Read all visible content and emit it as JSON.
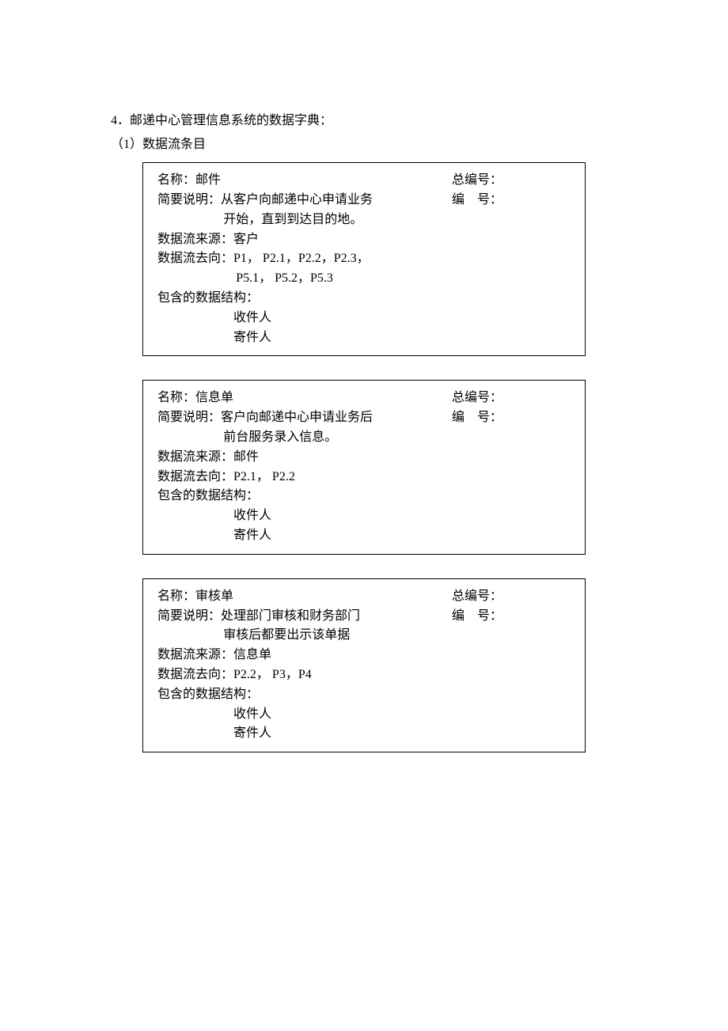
{
  "heading1": "4．邮递中心管理信息系统的数据字典：",
  "heading2": "（1）数据流条目",
  "labels": {
    "name": "名称：",
    "desc": "简要说明：",
    "source": "数据流来源：",
    "dest": "数据流去向：",
    "struct": "包含的数据结构：",
    "totalNo": "总编号：",
    "no": "编　号："
  },
  "entries": [
    {
      "name": "邮件",
      "desc_line1": "从客户向邮递中心申请业务",
      "desc_line2": "开始，直到到达目的地。",
      "source": "客户",
      "dest_line1": "P1， P2.1，P2.2，P2.3，",
      "dest_line2": "P5.1， P5.2，P5.3",
      "struct1": "收件人",
      "struct2": "寄件人"
    },
    {
      "name": "信息单",
      "desc_line1": "客户向邮递中心申请业务后",
      "desc_line2": "前台服务录入信息。",
      "source": "邮件",
      "dest_line1": "P2.1， P2.2",
      "dest_line2": "",
      "struct1": "收件人",
      "struct2": "寄件人"
    },
    {
      "name": "审核单",
      "desc_line1": "处理部门审核和财务部门",
      "desc_line2": "审核后都要出示该单据",
      "source": "信息单",
      "dest_line1": "P2.2， P3，P4",
      "dest_line2": "",
      "struct1": "收件人",
      "struct2": "寄件人"
    }
  ]
}
